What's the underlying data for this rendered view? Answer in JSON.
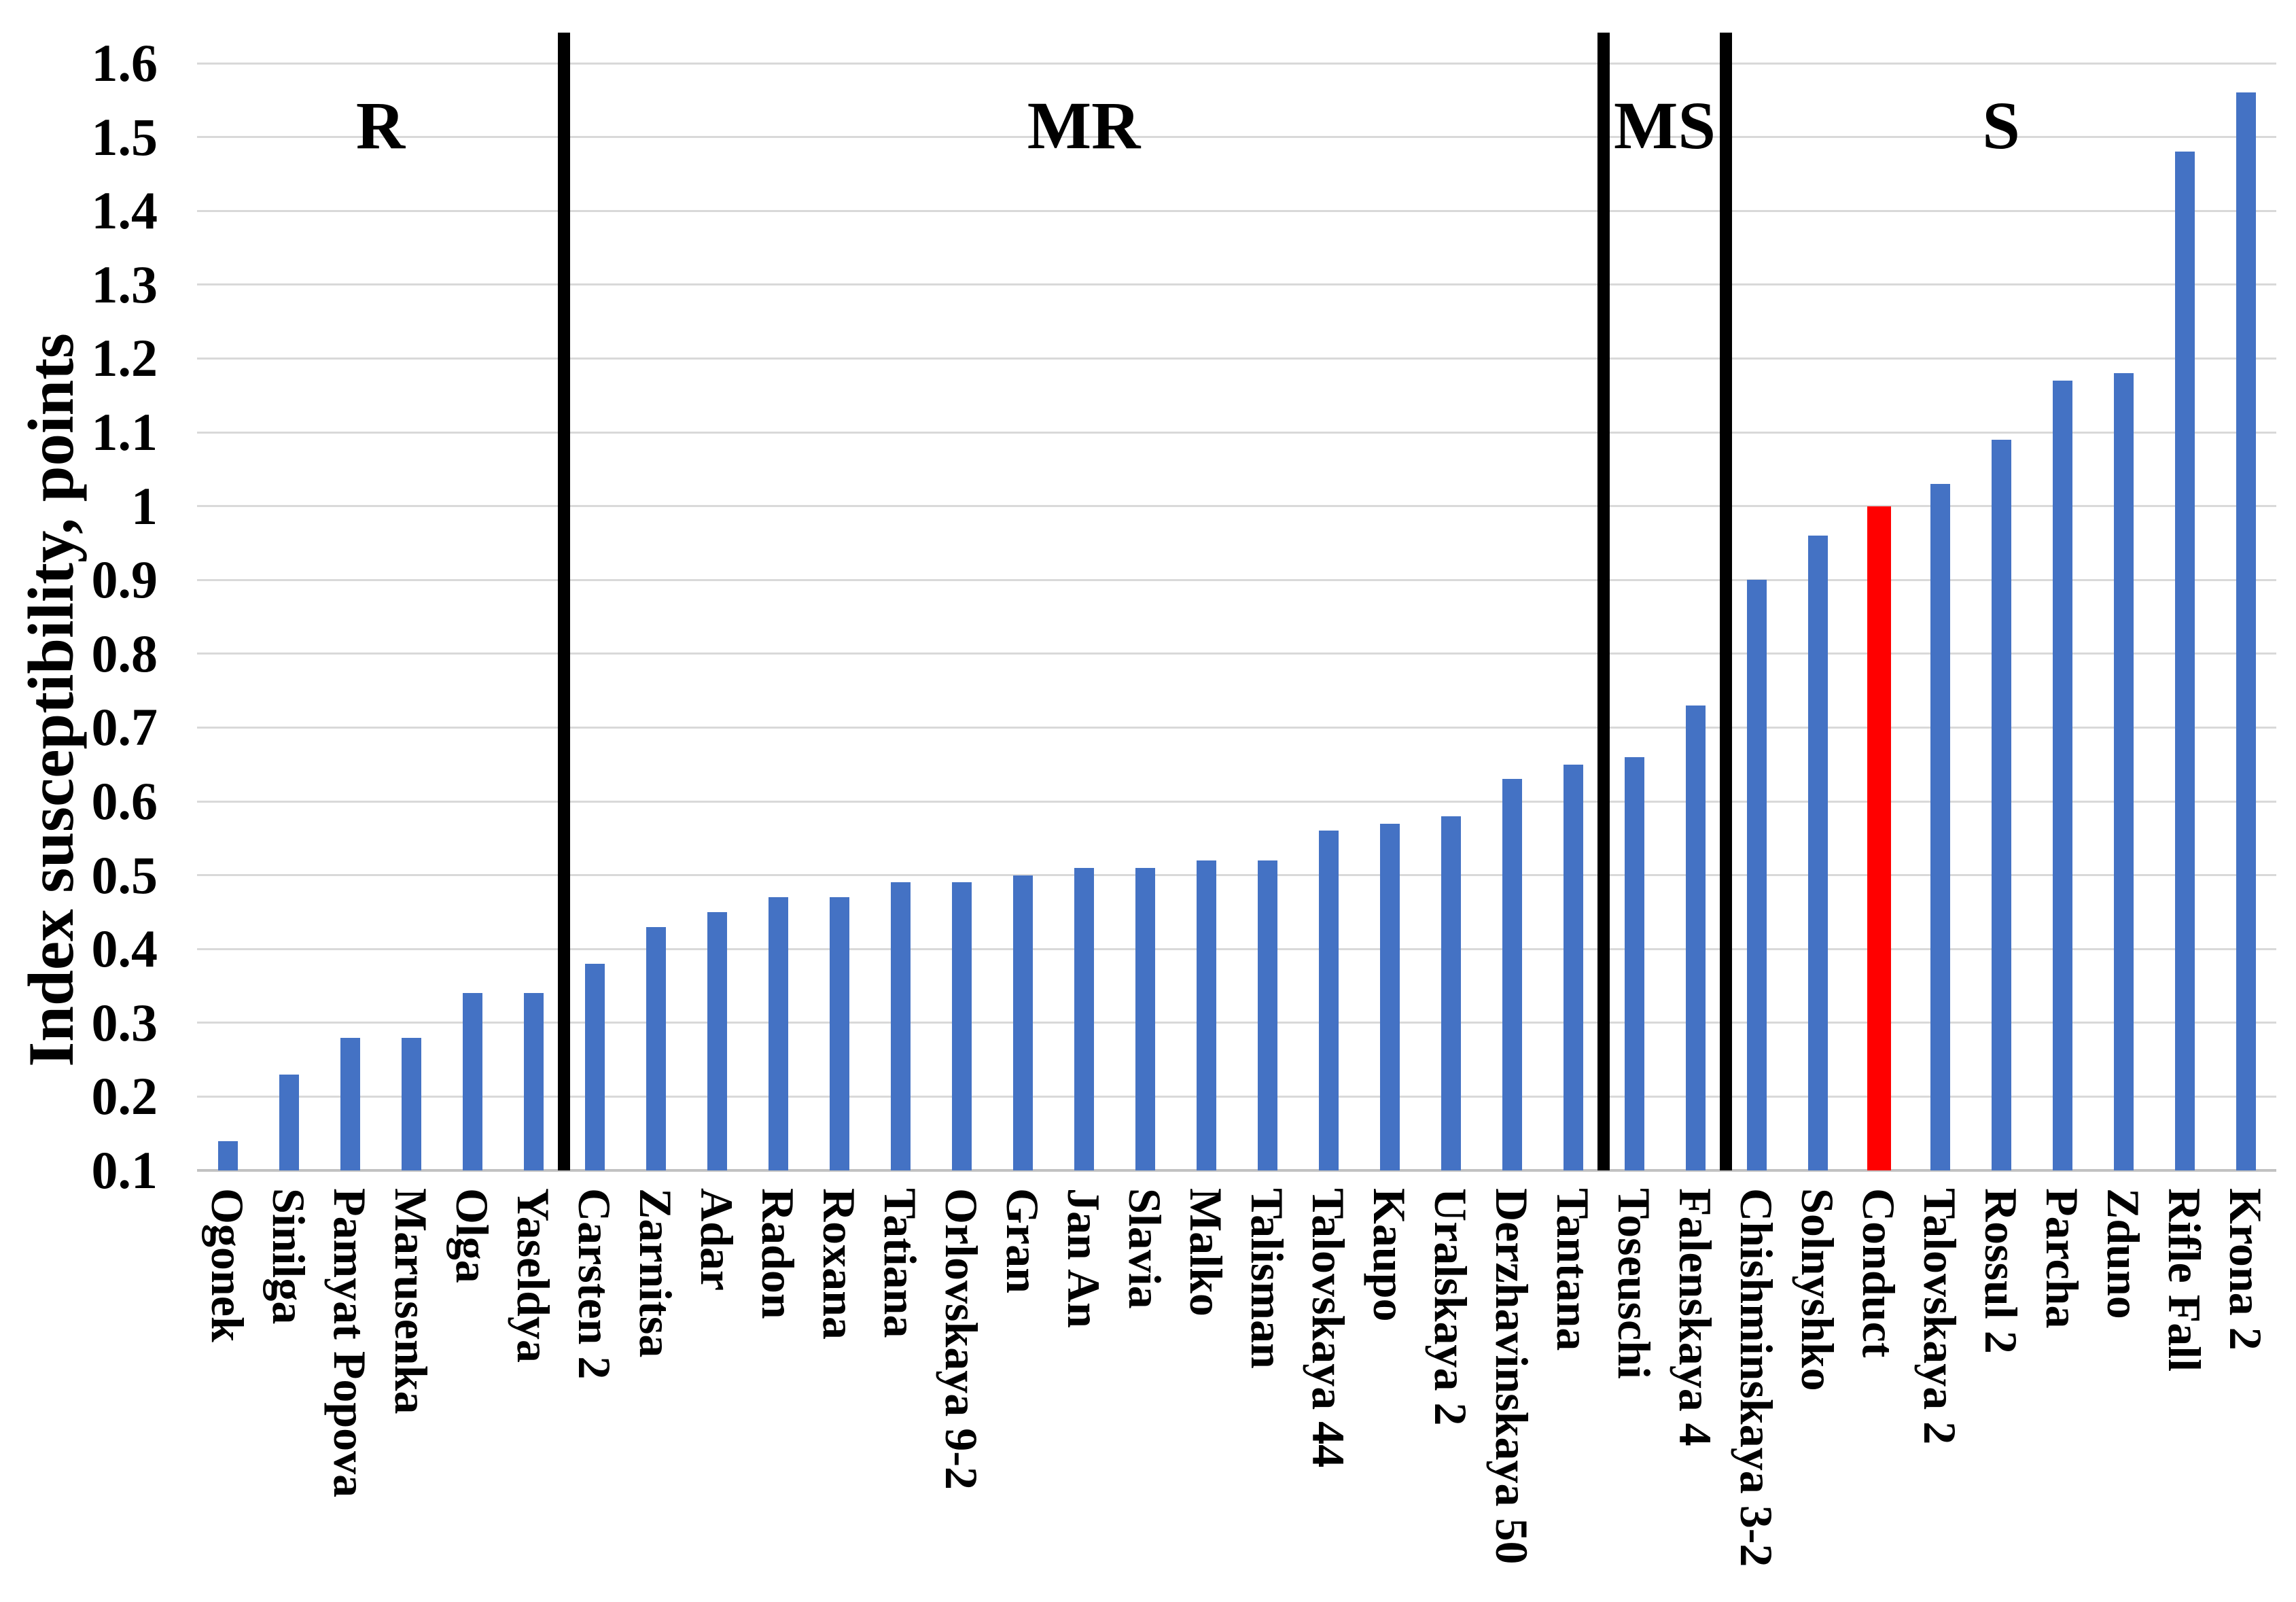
{
  "page": {
    "background": "#FFFFFF"
  },
  "chart_data": {
    "type": "bar",
    "title": "",
    "xlabel": "",
    "ylabel": "Index susceptibility, points",
    "categories": [
      "Ogonek",
      "Sinilga",
      "Pamyat Popova",
      "Marusenka",
      "Olga",
      "Yaseldya",
      "Carsten 2",
      "Zarnitsa",
      "Adar",
      "Radon",
      "Roxana",
      "Tatiana",
      "Orlovskaya 9-2",
      "Gran",
      "Jan An",
      "Slavia",
      "Malko",
      "Talisman",
      "Talovskaya 44",
      "Kaupo",
      "Uralskaya 2",
      "Derzhavinskaya 50",
      "Tantana",
      "Toseuschi",
      "Falenskaya 4",
      "Chishminskaya 3-2",
      "Solnyshko",
      "Conduct",
      "Talovskaya 2",
      "Rossul 2",
      "Parcha",
      "Zduno",
      "Rifle Fall",
      "Krona 2"
    ],
    "values": [
      0.14,
      0.23,
      0.28,
      0.28,
      0.34,
      0.34,
      0.38,
      0.43,
      0.45,
      0.47,
      0.47,
      0.49,
      0.49,
      0.5,
      0.51,
      0.51,
      0.52,
      0.52,
      0.56,
      0.57,
      0.58,
      0.63,
      0.65,
      0.66,
      0.73,
      0.9,
      0.96,
      1.0,
      1.03,
      1.09,
      1.17,
      1.18,
      1.48,
      1.56
    ],
    "bar_color": "#4472C4",
    "highlight": {
      "category": "Conduct",
      "index": 27,
      "color": "#FF0000"
    },
    "ylim": [
      0.1,
      1.6
    ],
    "ytick_step": 0.1,
    "ytick_labels": [
      "0.1",
      "0.2",
      "0.3",
      "0.4",
      "0.5",
      "0.6",
      "0.7",
      "0.8",
      "0.9",
      "1",
      "1.1",
      "1.2",
      "1.3",
      "1.4",
      "1.5",
      "1.6"
    ],
    "grid": true,
    "gridline_color": "#D9D9D9",
    "axis_line_color": "#C2C2C2",
    "divider_color": "#000000",
    "groups": [
      {
        "label": "R",
        "start": 0,
        "end": 5
      },
      {
        "label": "MR",
        "start": 6,
        "end": 22
      },
      {
        "label": "MS",
        "start": 23,
        "end": 24
      },
      {
        "label": "S",
        "start": 25,
        "end": 33
      }
    ],
    "legend": null
  }
}
